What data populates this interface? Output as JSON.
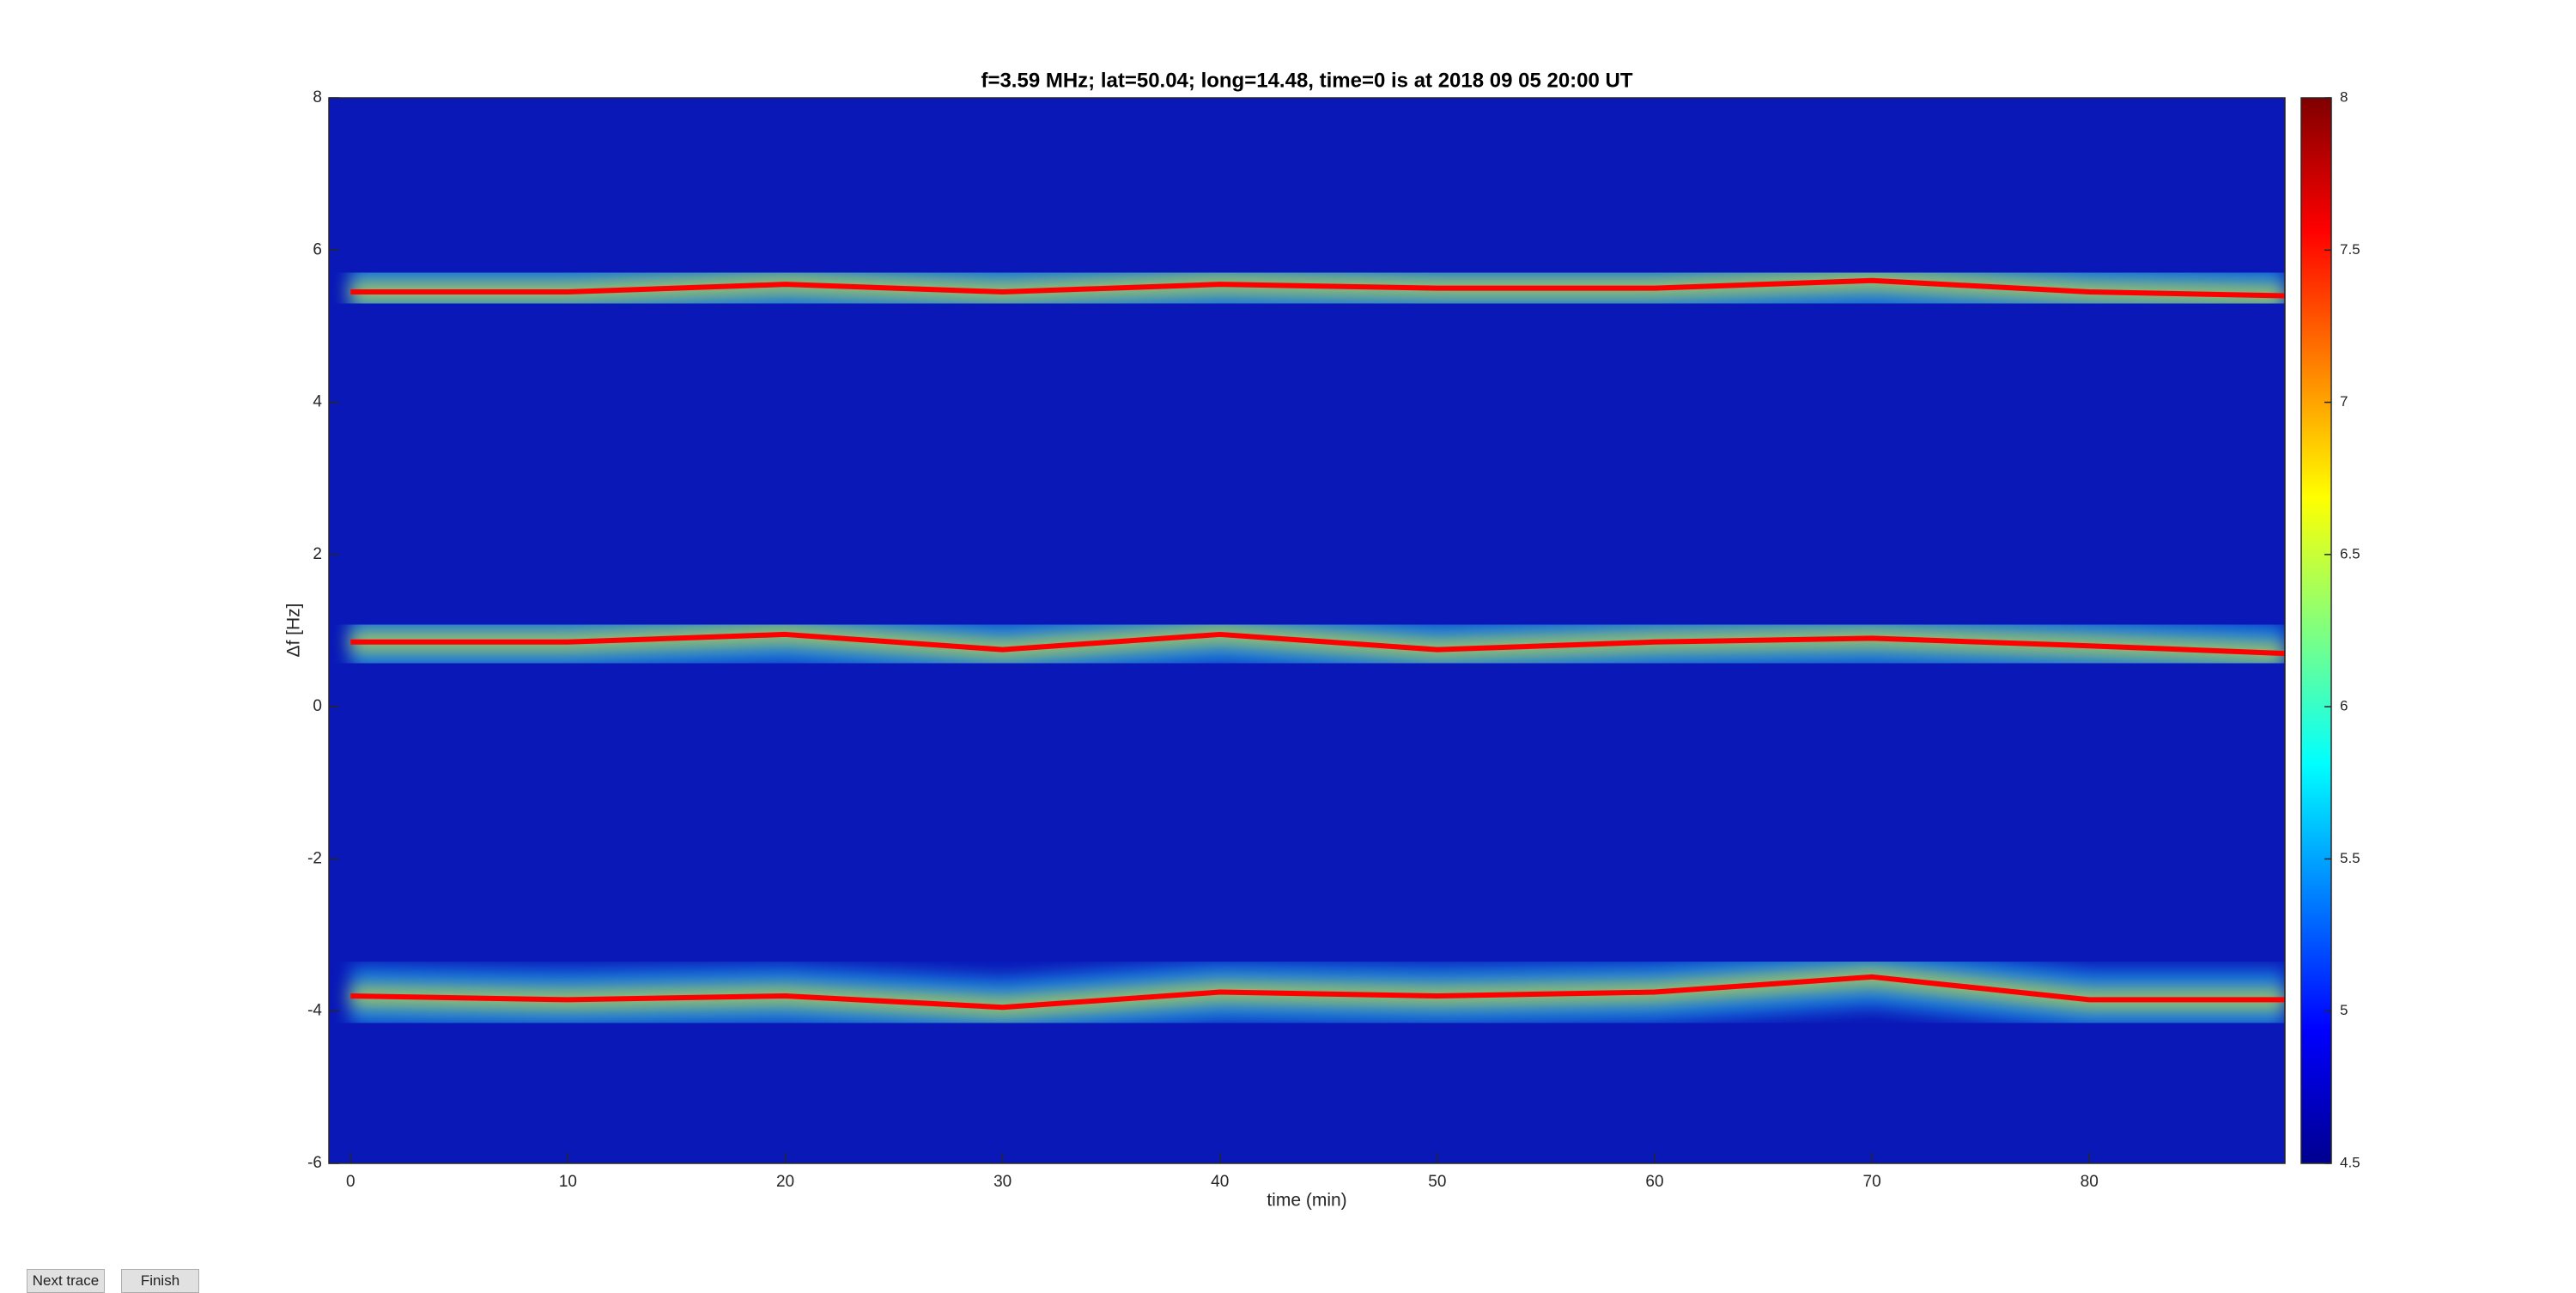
{
  "chart_data": {
    "type": "spectrogram",
    "title": "f=3.59 MHz;  lat=50.04; long=14.48, time=0 is at 2018 09 05 20:00 UT",
    "xlabel": "time (min)",
    "ylabel": "Δf [Hz]",
    "x": [
      0,
      10,
      20,
      30,
      40,
      50,
      60,
      70,
      80,
      89
    ],
    "series": [
      {
        "color": "#ff0000",
        "values": [
          5.45,
          5.45,
          5.55,
          5.45,
          5.55,
          5.5,
          5.5,
          5.6,
          5.45,
          5.4
        ]
      },
      {
        "color": "#ff0000",
        "values": [
          0.85,
          0.85,
          0.95,
          0.75,
          0.95,
          0.75,
          0.85,
          0.9,
          0.8,
          0.7
        ]
      },
      {
        "color": "#ff0000",
        "values": [
          -3.8,
          -3.85,
          -3.8,
          -3.95,
          -3.75,
          -3.8,
          -3.75,
          -3.55,
          -3.85,
          -3.85
        ]
      }
    ],
    "xlim": [
      -1,
      89
    ],
    "ylim": [
      -6,
      8
    ],
    "xticks": [
      0,
      10,
      20,
      30,
      40,
      50,
      60,
      70,
      80
    ],
    "yticks": [
      -6,
      -4,
      -2,
      0,
      2,
      4,
      6,
      8
    ],
    "colorbar": {
      "colormap": "jet",
      "lim": [
        4.5,
        8
      ],
      "ticks": [
        4.5,
        5,
        5.5,
        6,
        6.5,
        7,
        7.5,
        8
      ]
    }
  },
  "buttons": [
    "Next trace",
    "Finish"
  ]
}
